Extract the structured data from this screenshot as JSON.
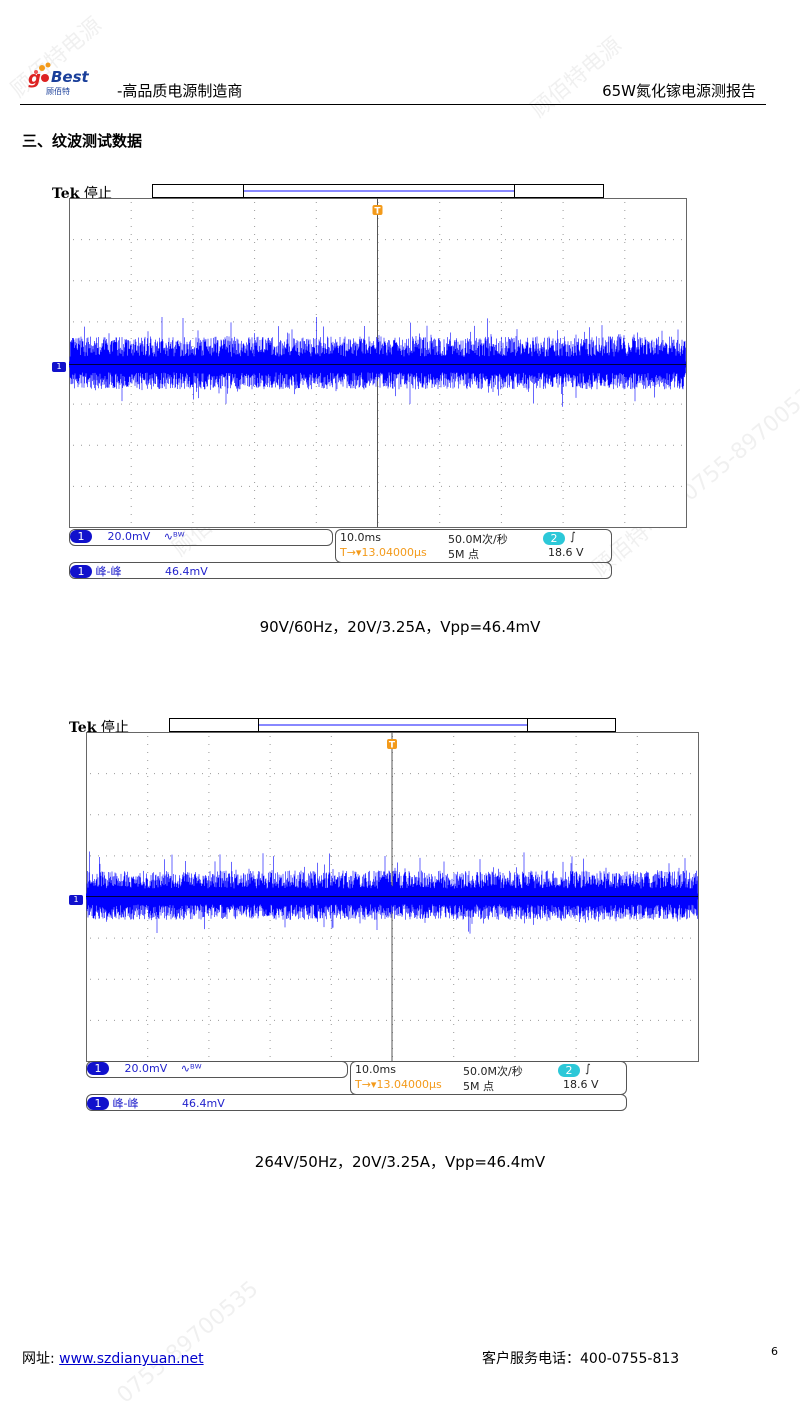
{
  "header": {
    "logo_text": "goBest 顾佰特",
    "subtitle": "-高品质电源制造商",
    "title": "65W氮化镓电源测报告"
  },
  "section_title": "三、纹波测试数据",
  "watermark": "顾佰特电源 0755-89700535",
  "scopes": [
    {
      "brand": "Tek",
      "status": "停止",
      "channel": "1",
      "volts_div": "20.0mV",
      "bw_icon": "bandwidth-limit-icon",
      "timebase": "10.0ms",
      "sample_rate": "50.0M次/秒",
      "trigger_channel": "2",
      "trigger_slope": "rising-edge-icon",
      "trigger_delay": "13.04000µs",
      "record_length": "5M 点",
      "trigger_level": "18.6 V",
      "measurement_label": "峰-峰",
      "measurement_value": "46.4mV",
      "caption": "90V/60Hz，20V/3.25A，Vpp=46.4mV"
    },
    {
      "brand": "Tek",
      "status": "停止",
      "channel": "1",
      "volts_div": "20.0mV",
      "bw_icon": "bandwidth-limit-icon",
      "timebase": "10.0ms",
      "sample_rate": "50.0M次/秒",
      "trigger_channel": "2",
      "trigger_slope": "rising-edge-icon",
      "trigger_delay": "13.04000µs",
      "record_length": "5M 点",
      "trigger_level": "18.6 V",
      "measurement_label": "峰-峰",
      "measurement_value": "46.4mV",
      "caption": "264V/50Hz，20V/3.25A，Vpp=46.4mV"
    }
  ],
  "footer": {
    "website_label": "网址: ",
    "website": "www.szdianyuan.net",
    "phone_label": "客户服务电话：",
    "phone": "400-0755-813",
    "page_number": "6"
  },
  "colors": {
    "trace": "#0000ff",
    "trigger": "#f39a1a",
    "channel": "#1111cc",
    "channel2": "#2cc8d8"
  }
}
